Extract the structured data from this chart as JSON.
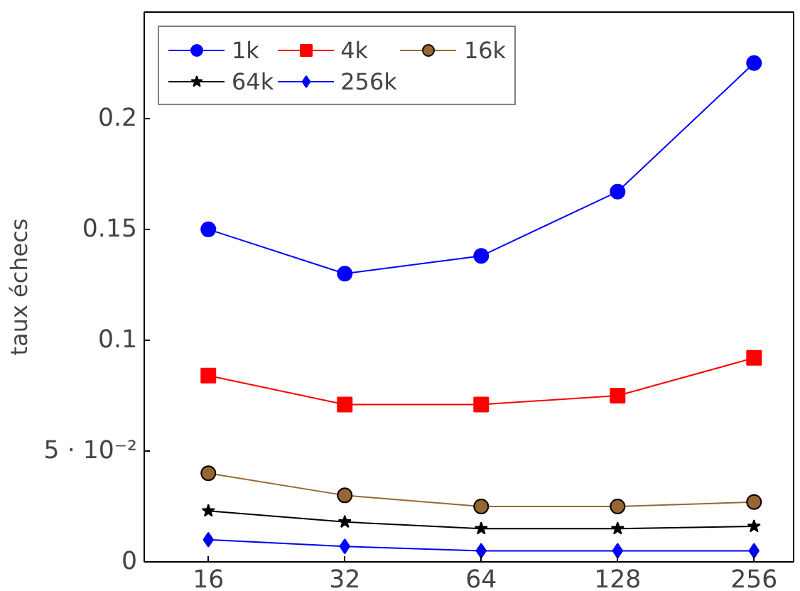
{
  "chart_data": {
    "type": "line",
    "ylabel": "taux échecs",
    "categories": [
      "16",
      "32",
      "64",
      "128",
      "256"
    ],
    "ylim": [
      0,
      0.248
    ],
    "yticks": [
      0,
      {
        "value": 0.05,
        "label": "5 · 10⁻²"
      },
      0.1,
      0.15,
      0.2
    ],
    "legend": "top left",
    "grid": false,
    "line_style": "solid",
    "series": [
      {
        "name": "1k",
        "color": "#0000ff",
        "marker": "circle",
        "values": [
          0.15,
          0.13,
          0.138,
          0.167,
          0.225
        ]
      },
      {
        "name": "4k",
        "color": "#ff0000",
        "marker": "square",
        "values": [
          0.084,
          0.071,
          0.071,
          0.075,
          0.092
        ]
      },
      {
        "name": "16k",
        "color": "#996633",
        "marker": "circle",
        "values": [
          0.04,
          0.03,
          0.025,
          0.025,
          0.027
        ]
      },
      {
        "name": "64k",
        "color": "#000000",
        "marker": "star",
        "values": [
          0.023,
          0.018,
          0.015,
          0.015,
          0.016
        ]
      },
      {
        "name": "256k",
        "color": "#0000ff",
        "marker": "diamond",
        "values": [
          0.01,
          0.007,
          0.005,
          0.005,
          0.005
        ]
      }
    ]
  }
}
